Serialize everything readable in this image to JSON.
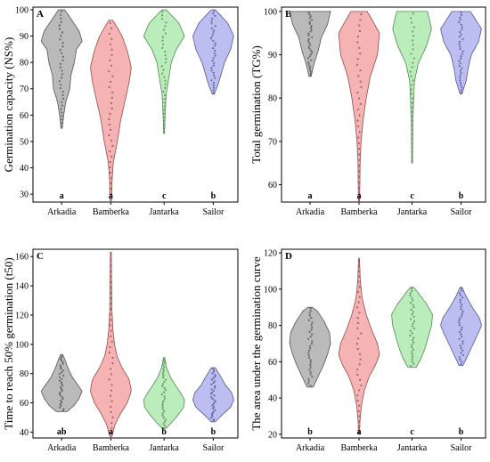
{
  "figure": {
    "categories": [
      "Arkadia",
      "Bamberka",
      "Jantarka",
      "Sailor"
    ],
    "colors": {
      "Arkadia": "#8c8c8c",
      "Bamberka": "#f08080",
      "Jantarka": "#8ee08e",
      "Sailor": "#8f91e6"
    }
  },
  "chart_data": [
    {
      "type": "violin",
      "panel": "A",
      "ylabel": "Germination capacity (NS%)",
      "ylim": [
        27,
        101
      ],
      "yticks": [
        30,
        40,
        50,
        60,
        70,
        80,
        90,
        100
      ],
      "categories": [
        "Arkadia",
        "Bamberka",
        "Jantarka",
        "Sailor"
      ],
      "letters": [
        "a",
        "a",
        "c",
        "b"
      ],
      "series": [
        {
          "category": "Arkadia",
          "min": 55,
          "max": 100,
          "profile": [
            [
              55,
              0.03
            ],
            [
              60,
              0.1
            ],
            [
              65,
              0.2
            ],
            [
              70,
              0.4
            ],
            [
              75,
              0.45
            ],
            [
              80,
              0.62
            ],
            [
              85,
              0.72
            ],
            [
              88,
              1.0
            ],
            [
              92,
              0.85
            ],
            [
              96,
              0.5
            ],
            [
              100,
              0.15
            ]
          ]
        },
        {
          "category": "Bamberka",
          "min": 27,
          "max": 96,
          "profile": [
            [
              27,
              0.02
            ],
            [
              30,
              0.05
            ],
            [
              35,
              0.06
            ],
            [
              42,
              0.12
            ],
            [
              50,
              0.32
            ],
            [
              58,
              0.48
            ],
            [
              65,
              0.68
            ],
            [
              72,
              0.88
            ],
            [
              78,
              1.0
            ],
            [
              84,
              0.82
            ],
            [
              90,
              0.55
            ],
            [
              96,
              0.1
            ]
          ]
        },
        {
          "category": "Jantarka",
          "min": 53,
          "max": 100,
          "profile": [
            [
              53,
              0.02
            ],
            [
              60,
              0.05
            ],
            [
              68,
              0.1
            ],
            [
              75,
              0.25
            ],
            [
              80,
              0.35
            ],
            [
              85,
              0.6
            ],
            [
              90,
              1.0
            ],
            [
              95,
              0.72
            ],
            [
              100,
              0.1
            ]
          ]
        },
        {
          "category": "Sailor",
          "min": 68,
          "max": 100,
          "profile": [
            [
              68,
              0.05
            ],
            [
              72,
              0.25
            ],
            [
              76,
              0.4
            ],
            [
              80,
              0.55
            ],
            [
              85,
              0.85
            ],
            [
              90,
              1.0
            ],
            [
              95,
              0.7
            ],
            [
              100,
              0.1
            ]
          ]
        }
      ]
    },
    {
      "type": "violin",
      "panel": "B",
      "ylabel": "Total germination (TG%)",
      "ylim": [
        56,
        101
      ],
      "yticks": [
        60,
        70,
        80,
        90,
        100
      ],
      "categories": [
        "Arkadia",
        "Bamberka",
        "Jantarka",
        "Sailor"
      ],
      "letters": [
        "a",
        "a",
        "c",
        "b"
      ],
      "series": [
        {
          "category": "Arkadia",
          "min": 85,
          "max": 100,
          "profile": [
            [
              85,
              0.05
            ],
            [
              88,
              0.2
            ],
            [
              91,
              0.4
            ],
            [
              94,
              0.55
            ],
            [
              97,
              0.85
            ],
            [
              100,
              1.0
            ]
          ]
        },
        {
          "category": "Bamberka",
          "min": 56,
          "max": 100,
          "profile": [
            [
              56,
              0.02
            ],
            [
              60,
              0.04
            ],
            [
              65,
              0.05
            ],
            [
              70,
              0.1
            ],
            [
              75,
              0.2
            ],
            [
              80,
              0.35
            ],
            [
              85,
              0.55
            ],
            [
              90,
              0.9
            ],
            [
              95,
              1.0
            ],
            [
              100,
              0.4
            ]
          ]
        },
        {
          "category": "Jantarka",
          "min": 65,
          "max": 100,
          "profile": [
            [
              65,
              0.02
            ],
            [
              70,
              0.03
            ],
            [
              75,
              0.04
            ],
            [
              80,
              0.08
            ],
            [
              84,
              0.12
            ],
            [
              88,
              0.3
            ],
            [
              92,
              0.7
            ],
            [
              96,
              0.95
            ],
            [
              100,
              0.75
            ]
          ]
        },
        {
          "category": "Sailor",
          "min": 81,
          "max": 100,
          "profile": [
            [
              81,
              0.05
            ],
            [
              84,
              0.25
            ],
            [
              87,
              0.35
            ],
            [
              90,
              0.5
            ],
            [
              93,
              0.85
            ],
            [
              96,
              1.0
            ],
            [
              100,
              0.45
            ]
          ]
        }
      ]
    },
    {
      "type": "violin",
      "panel": "C",
      "ylabel": "Time to reach 50% germination (t50)",
      "ylim": [
        36,
        165
      ],
      "yticks": [
        40,
        60,
        80,
        100,
        120,
        140,
        160
      ],
      "categories": [
        "Arkadia",
        "Bamberka",
        "Jantarka",
        "Sailor"
      ],
      "letters": [
        "ab",
        "a",
        "b",
        "b"
      ],
      "series": [
        {
          "category": "Arkadia",
          "min": 54,
          "max": 93,
          "profile": [
            [
              54,
              0.25
            ],
            [
              58,
              0.6
            ],
            [
              63,
              0.85
            ],
            [
              68,
              1.0
            ],
            [
              73,
              0.75
            ],
            [
              78,
              0.5
            ],
            [
              84,
              0.3
            ],
            [
              90,
              0.15
            ],
            [
              93,
              0.05
            ]
          ]
        },
        {
          "category": "Bamberka",
          "min": 37,
          "max": 163,
          "profile": [
            [
              37,
              0.05
            ],
            [
              45,
              0.2
            ],
            [
              52,
              0.45
            ],
            [
              60,
              0.8
            ],
            [
              68,
              1.0
            ],
            [
              76,
              0.9
            ],
            [
              84,
              0.55
            ],
            [
              92,
              0.3
            ],
            [
              100,
              0.18
            ],
            [
              110,
              0.1
            ],
            [
              125,
              0.05
            ],
            [
              140,
              0.04
            ],
            [
              155,
              0.03
            ],
            [
              163,
              0.02
            ]
          ]
        },
        {
          "category": "Jantarka",
          "min": 42,
          "max": 91,
          "profile": [
            [
              42,
              0.05
            ],
            [
              47,
              0.4
            ],
            [
              52,
              0.7
            ],
            [
              57,
              0.95
            ],
            [
              62,
              1.0
            ],
            [
              67,
              0.8
            ],
            [
              72,
              0.55
            ],
            [
              78,
              0.3
            ],
            [
              84,
              0.12
            ],
            [
              91,
              0.03
            ]
          ]
        },
        {
          "category": "Sailor",
          "min": 47,
          "max": 84,
          "profile": [
            [
              47,
              0.1
            ],
            [
              52,
              0.45
            ],
            [
              57,
              0.85
            ],
            [
              62,
              1.0
            ],
            [
              67,
              0.9
            ],
            [
              72,
              0.6
            ],
            [
              77,
              0.4
            ],
            [
              84,
              0.1
            ]
          ]
        }
      ]
    },
    {
      "type": "violin",
      "panel": "D",
      "ylabel": "The area under the germination curve",
      "ylim": [
        18,
        122
      ],
      "yticks": [
        20,
        40,
        60,
        80,
        100,
        120
      ],
      "categories": [
        "Arkadia",
        "Bamberka",
        "Jantarka",
        "Sailor"
      ],
      "letters": [
        "b",
        "a",
        "c",
        "b"
      ],
      "series": [
        {
          "category": "Arkadia",
          "min": 46,
          "max": 90,
          "profile": [
            [
              46,
              0.15
            ],
            [
              52,
              0.4
            ],
            [
              58,
              0.65
            ],
            [
              64,
              0.85
            ],
            [
              70,
              1.0
            ],
            [
              76,
              0.95
            ],
            [
              82,
              0.7
            ],
            [
              88,
              0.35
            ],
            [
              90,
              0.1
            ]
          ]
        },
        {
          "category": "Bamberka",
          "min": 20,
          "max": 117,
          "profile": [
            [
              20,
              0.02
            ],
            [
              28,
              0.05
            ],
            [
              36,
              0.12
            ],
            [
              44,
              0.25
            ],
            [
              52,
              0.5
            ],
            [
              58,
              0.8
            ],
            [
              64,
              1.0
            ],
            [
              70,
              0.9
            ],
            [
              78,
              0.6
            ],
            [
              86,
              0.35
            ],
            [
              95,
              0.15
            ],
            [
              105,
              0.06
            ],
            [
              117,
              0.02
            ]
          ]
        },
        {
          "category": "Jantarka",
          "min": 57,
          "max": 101,
          "profile": [
            [
              57,
              0.2
            ],
            [
              62,
              0.45
            ],
            [
              68,
              0.65
            ],
            [
              74,
              0.8
            ],
            [
              80,
              0.95
            ],
            [
              86,
              1.0
            ],
            [
              92,
              0.7
            ],
            [
              98,
              0.3
            ],
            [
              101,
              0.08
            ]
          ]
        },
        {
          "category": "Sailor",
          "min": 58,
          "max": 101,
          "profile": [
            [
              58,
              0.1
            ],
            [
              64,
              0.35
            ],
            [
              70,
              0.6
            ],
            [
              76,
              0.85
            ],
            [
              80,
              1.0
            ],
            [
              84,
              0.9
            ],
            [
              90,
              0.55
            ],
            [
              96,
              0.25
            ],
            [
              101,
              0.05
            ]
          ]
        }
      ]
    }
  ]
}
